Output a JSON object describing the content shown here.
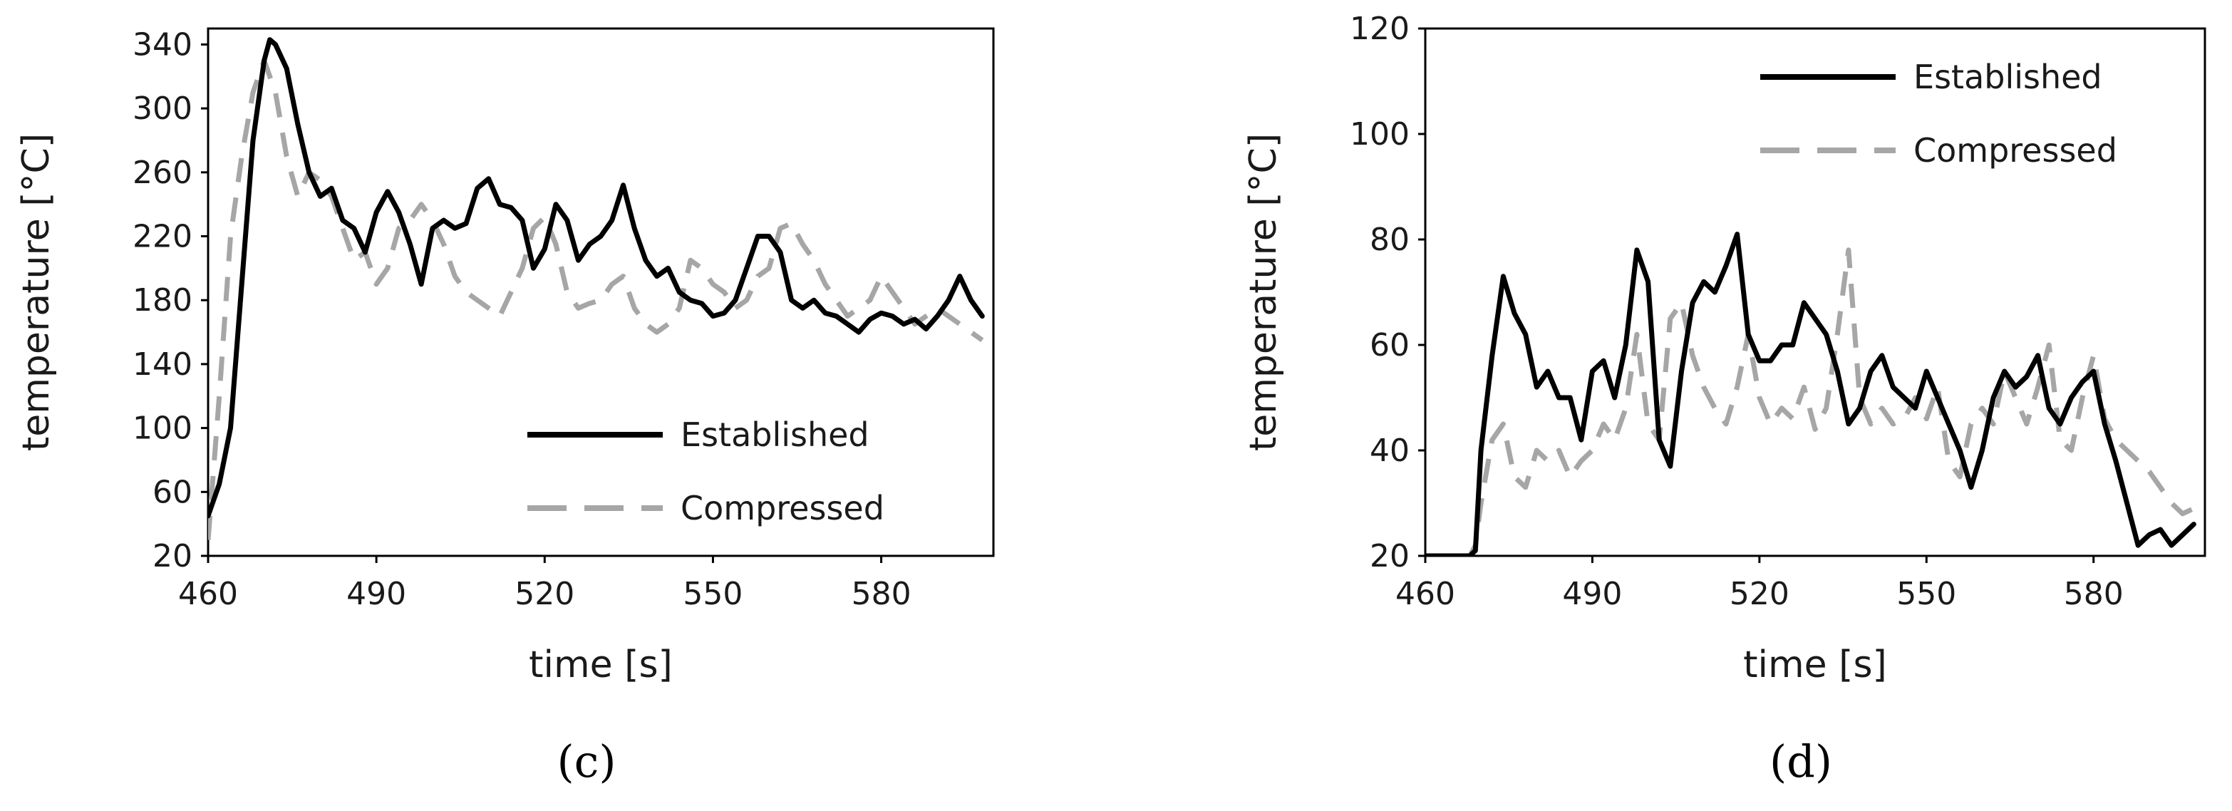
{
  "chart_data": [
    {
      "type": "line",
      "panel_label": "(c)",
      "xlabel": "time [s]",
      "ylabel": "temperature [°C]",
      "xlim": [
        460,
        600
      ],
      "ylim": [
        20,
        350
      ],
      "xticks": [
        460,
        490,
        520,
        550,
        580
      ],
      "yticks": [
        20,
        60,
        100,
        140,
        180,
        220,
        260,
        300,
        340
      ],
      "legend_position": "bottom-right",
      "grid": false,
      "series": [
        {
          "name": "Established",
          "style": "solid",
          "color": "#000000",
          "x": [
            460,
            462,
            464,
            466,
            468,
            470,
            471,
            472,
            474,
            476,
            478,
            480,
            482,
            484,
            486,
            488,
            490,
            492,
            494,
            496,
            498,
            500,
            502,
            504,
            506,
            508,
            510,
            512,
            514,
            516,
            518,
            520,
            522,
            524,
            526,
            528,
            530,
            532,
            534,
            536,
            538,
            540,
            542,
            544,
            546,
            548,
            550,
            552,
            554,
            556,
            558,
            560,
            562,
            564,
            566,
            568,
            570,
            572,
            574,
            576,
            578,
            580,
            582,
            584,
            586,
            588,
            590,
            592,
            594,
            596,
            598
          ],
          "y": [
            45,
            65,
            100,
            190,
            280,
            330,
            343,
            340,
            325,
            290,
            260,
            245,
            250,
            230,
            225,
            210,
            235,
            248,
            235,
            215,
            190,
            225,
            230,
            225,
            228,
            250,
            256,
            240,
            238,
            230,
            200,
            212,
            240,
            230,
            205,
            215,
            220,
            230,
            252,
            225,
            205,
            195,
            200,
            185,
            180,
            178,
            170,
            172,
            180,
            200,
            220,
            220,
            210,
            180,
            175,
            180,
            172,
            170,
            165,
            160,
            168,
            172,
            170,
            165,
            168,
            162,
            170,
            180,
            195,
            180,
            170
          ]
        },
        {
          "name": "Compressed",
          "style": "dashed",
          "color": "#a6a6a6",
          "x": [
            460,
            462,
            464,
            466,
            468,
            470,
            472,
            474,
            476,
            478,
            480,
            482,
            484,
            486,
            488,
            490,
            492,
            494,
            496,
            498,
            500,
            502,
            504,
            506,
            508,
            510,
            512,
            514,
            516,
            518,
            520,
            522,
            524,
            526,
            528,
            530,
            532,
            534,
            536,
            538,
            540,
            542,
            544,
            546,
            548,
            550,
            552,
            554,
            556,
            558,
            560,
            562,
            564,
            566,
            568,
            570,
            572,
            574,
            576,
            578,
            580,
            582,
            584,
            586,
            588,
            590,
            592,
            594,
            596,
            598
          ],
          "y": [
            30,
            120,
            220,
            270,
            310,
            330,
            310,
            270,
            245,
            260,
            255,
            245,
            225,
            205,
            210,
            190,
            200,
            225,
            230,
            240,
            230,
            215,
            195,
            185,
            180,
            175,
            170,
            185,
            200,
            225,
            232,
            215,
            185,
            175,
            178,
            180,
            190,
            195,
            175,
            165,
            160,
            165,
            175,
            205,
            200,
            190,
            185,
            175,
            180,
            195,
            200,
            225,
            228,
            215,
            205,
            190,
            180,
            170,
            175,
            180,
            195,
            185,
            175,
            165,
            170,
            175,
            170,
            165,
            160,
            155
          ]
        }
      ]
    },
    {
      "type": "line",
      "panel_label": "(d)",
      "xlabel": "time [s]",
      "ylabel": "temperature [°C]",
      "xlim": [
        460,
        600
      ],
      "ylim": [
        20,
        120
      ],
      "xticks": [
        460,
        490,
        520,
        550,
        580
      ],
      "yticks": [
        20,
        40,
        60,
        80,
        100,
        120
      ],
      "legend_position": "top-right",
      "grid": false,
      "series": [
        {
          "name": "Established",
          "style": "solid",
          "color": "#000000",
          "x": [
            460,
            462,
            464,
            466,
            468,
            469,
            470,
            472,
            474,
            476,
            478,
            480,
            482,
            484,
            486,
            488,
            490,
            492,
            494,
            496,
            498,
            500,
            502,
            504,
            506,
            508,
            510,
            512,
            514,
            516,
            518,
            520,
            522,
            524,
            526,
            528,
            530,
            532,
            534,
            536,
            538,
            540,
            542,
            544,
            546,
            548,
            550,
            552,
            554,
            556,
            558,
            560,
            562,
            564,
            566,
            568,
            570,
            572,
            574,
            576,
            578,
            580,
            582,
            584,
            586,
            588,
            590,
            592,
            594,
            596,
            598
          ],
          "y": [
            20,
            20,
            20,
            20,
            20,
            21,
            40,
            58,
            73,
            66,
            62,
            52,
            55,
            50,
            50,
            42,
            55,
            57,
            50,
            60,
            78,
            72,
            42,
            37,
            55,
            68,
            72,
            70,
            75,
            81,
            62,
            57,
            57,
            60,
            60,
            68,
            65,
            62,
            55,
            45,
            48,
            55,
            58,
            52,
            50,
            48,
            55,
            50,
            45,
            40,
            33,
            40,
            50,
            55,
            52,
            54,
            58,
            48,
            45,
            50,
            53,
            55,
            45,
            38,
            30,
            22,
            24,
            25,
            22,
            24,
            26
          ]
        },
        {
          "name": "Compressed",
          "style": "dashed",
          "color": "#a6a6a6",
          "x": [
            460,
            462,
            464,
            466,
            468,
            469,
            470,
            472,
            474,
            476,
            478,
            480,
            482,
            484,
            486,
            488,
            490,
            492,
            494,
            496,
            498,
            500,
            502,
            504,
            506,
            508,
            510,
            512,
            514,
            516,
            518,
            520,
            522,
            524,
            526,
            528,
            530,
            532,
            534,
            536,
            538,
            540,
            542,
            544,
            546,
            548,
            550,
            552,
            554,
            556,
            558,
            560,
            562,
            564,
            566,
            568,
            570,
            572,
            574,
            576,
            578,
            580,
            582,
            584,
            586,
            588,
            590,
            592,
            594,
            596,
            598
          ],
          "y": [
            20,
            20,
            20,
            20,
            20,
            22,
            30,
            42,
            45,
            35,
            33,
            40,
            38,
            40,
            35,
            38,
            40,
            45,
            42,
            48,
            62,
            45,
            42,
            65,
            68,
            58,
            52,
            48,
            45,
            52,
            62,
            50,
            45,
            48,
            46,
            52,
            44,
            48,
            62,
            78,
            50,
            45,
            48,
            45,
            46,
            50,
            46,
            52,
            38,
            35,
            45,
            48,
            45,
            55,
            50,
            45,
            52,
            60,
            42,
            40,
            50,
            58,
            46,
            42,
            40,
            38,
            36,
            33,
            30,
            28,
            29
          ]
        }
      ]
    }
  ]
}
